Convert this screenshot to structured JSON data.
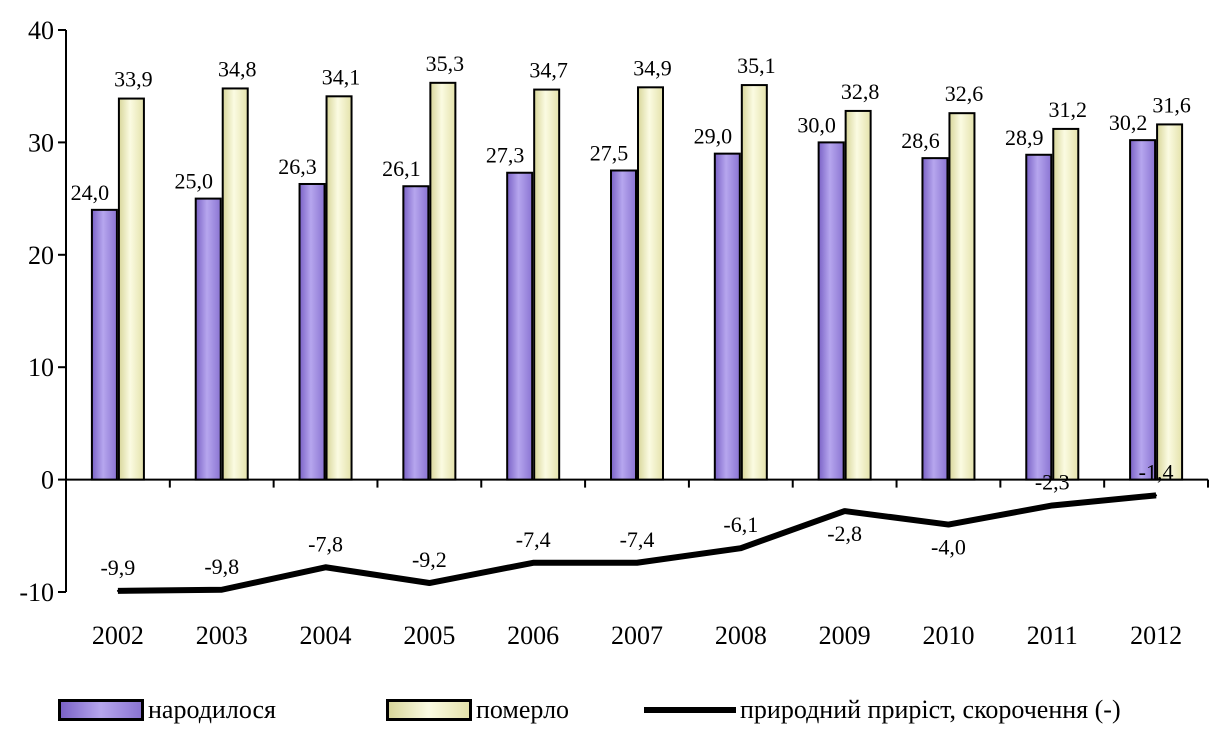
{
  "chart_data": {
    "type": "bar",
    "title": "",
    "xlabel": "",
    "ylabel": "",
    "categories": [
      "2002",
      "2003",
      "2004",
      "2005",
      "2006",
      "2007",
      "2008",
      "2009",
      "2010",
      "2011",
      "2012"
    ],
    "ylim": [
      -10,
      40
    ],
    "yticks": [
      "-10",
      "0",
      "10",
      "20",
      "30",
      "40"
    ],
    "grid": false,
    "legend_position": "bottom",
    "series": [
      {
        "name": "народилося",
        "type": "bar",
        "color": "#9b87d8",
        "values": [
          24.0,
          25.0,
          26.3,
          26.1,
          27.3,
          27.5,
          29.0,
          30.0,
          28.6,
          28.9,
          30.2
        ],
        "labels": [
          "24,0",
          "25,0",
          "26,3",
          "26,1",
          "27,3",
          "27,5",
          "29,0",
          "30,0",
          "28,6",
          "28,9",
          "30,2"
        ]
      },
      {
        "name": "померло",
        "type": "bar",
        "color": "#f3f2c4",
        "values": [
          33.9,
          34.8,
          34.1,
          35.3,
          34.7,
          34.9,
          35.1,
          32.8,
          32.6,
          31.2,
          31.6
        ],
        "labels": [
          "33,9",
          "34,8",
          "34,1",
          "35,3",
          "34,7",
          "34,9",
          "35,1",
          "32,8",
          "32,6",
          "31,2",
          "31,6"
        ]
      },
      {
        "name": "природний приріст, скорочення (-)",
        "type": "line",
        "color": "#000000",
        "values": [
          -9.9,
          -9.8,
          -7.8,
          -9.2,
          -7.4,
          -7.4,
          -6.1,
          -2.8,
          -4.0,
          -2.3,
          -1.4
        ],
        "labels": [
          "-9,9",
          "-9,8",
          "-7,8",
          "-9,2",
          "-7,4",
          "-7,4",
          "-6,1",
          "-2,8",
          "-4,0",
          "-2,3",
          "-1,4"
        ]
      }
    ]
  }
}
